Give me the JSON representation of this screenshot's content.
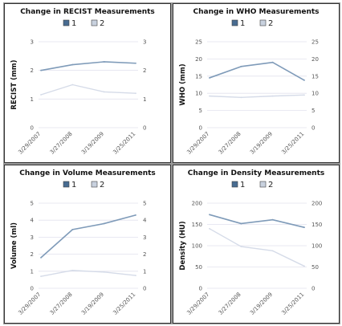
{
  "chart_data": [
    {
      "type": "line",
      "title": "Change in RECIST Measurements",
      "ylabel": "RECIST (mm)",
      "xlabel": "",
      "categories": [
        "3/29/2007",
        "3/27/2008",
        "3/19/2009",
        "3/25/2011"
      ],
      "ylim": [
        0,
        3
      ],
      "yticks": [
        0,
        1,
        2,
        3
      ],
      "series": [
        {
          "name": "1",
          "values": [
            2.0,
            2.2,
            2.3,
            2.25
          ]
        },
        {
          "name": "2",
          "values": [
            1.15,
            1.5,
            1.25,
            1.2
          ]
        }
      ],
      "legend": "top-center",
      "grid": true
    },
    {
      "type": "line",
      "title": "Change in WHO Measurements",
      "ylabel": "WHO (mm)",
      "xlabel": "",
      "categories": [
        "3/29/2007",
        "3/27/2008",
        "3/19/2009",
        "3/25/2011"
      ],
      "ylim": [
        0,
        25
      ],
      "yticks": [
        0,
        5,
        10,
        15,
        20,
        25
      ],
      "series": [
        {
          "name": "1",
          "values": [
            14.5,
            17.8,
            19,
            13.8
          ]
        },
        {
          "name": "2",
          "values": [
            9.2,
            8.8,
            9.2,
            9.5
          ]
        }
      ],
      "legend": "top-center",
      "grid": true
    },
    {
      "type": "line",
      "title": "Change in Volume Measurements",
      "ylabel": "Volume (ml)",
      "xlabel": "",
      "categories": [
        "3/29/2007",
        "3/27/2008",
        "3/19/2009",
        "3/25/2011"
      ],
      "ylim": [
        0,
        5
      ],
      "yticks": [
        0,
        1,
        2,
        3,
        4,
        5
      ],
      "series": [
        {
          "name": "1",
          "values": [
            1.8,
            3.45,
            3.8,
            4.3
          ]
        },
        {
          "name": "2",
          "values": [
            0.7,
            1.05,
            0.95,
            0.75
          ]
        }
      ],
      "legend": "top-center",
      "grid": true
    },
    {
      "type": "line",
      "title": "Change in Density Measurements",
      "ylabel": "Density (HU)",
      "xlabel": "",
      "categories": [
        "3/29/2007",
        "3/27/2008",
        "3/19/2009",
        "3/25/2011"
      ],
      "ylim": [
        0,
        200
      ],
      "yticks": [
        0,
        50,
        100,
        150,
        200
      ],
      "series": [
        {
          "name": "1",
          "values": [
            173,
            152,
            161,
            143
          ]
        },
        {
          "name": "2",
          "values": [
            140,
            98,
            88,
            52
          ]
        }
      ],
      "legend": "top-center",
      "grid": true
    }
  ],
  "colors": {
    "series_1": "#7f9bb9",
    "series_2": "#d5dbe8",
    "series_1_swatch": "#486c91",
    "series_2_swatch": "#c8d1de",
    "gridline": "#e2e2ee",
    "axis_text": "#555555"
  }
}
